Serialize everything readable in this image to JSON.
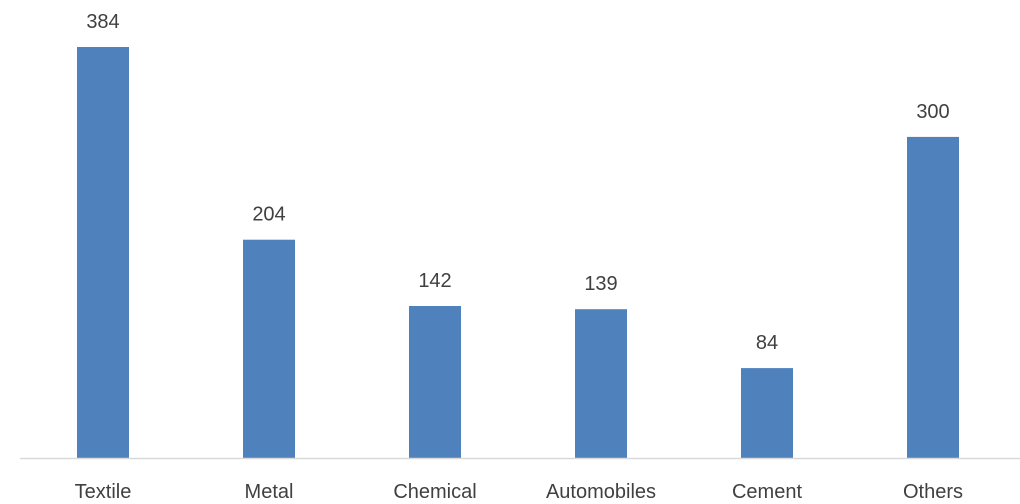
{
  "chart_data": {
    "type": "bar",
    "title": "",
    "xlabel": "",
    "ylabel": "",
    "categories": [
      "Textile",
      "Metal",
      "Chemical",
      "Automobiles",
      "Cement",
      "Others"
    ],
    "values": [
      384,
      204,
      142,
      139,
      84,
      300
    ],
    "data_labels": [
      "384",
      "204",
      "142",
      "139",
      "84",
      "300"
    ],
    "ylim": [
      0,
      384
    ],
    "grid": false,
    "legend": "none",
    "colors": {
      "bar": "#4F81BD",
      "axis": "#D9D9D9",
      "text": "#404040"
    }
  }
}
